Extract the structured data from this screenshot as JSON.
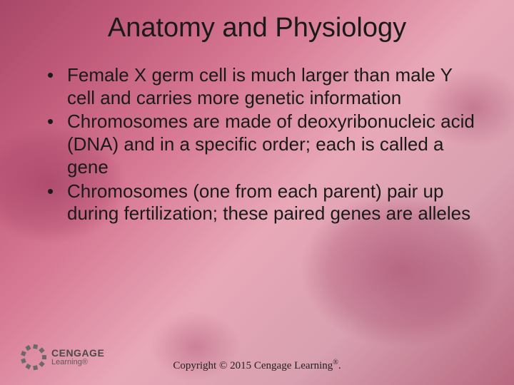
{
  "title": "Anatomy and Physiology",
  "bullets": [
    "Female X germ cell is much larger than male Y cell and carries more genetic information",
    "Chromosomes are made of deoxyribonucleic acid (DNA) and in a specific order; each is called a gene",
    "Chromosomes (one from each parent) pair up during fertilization; these paired genes are alleles"
  ],
  "logo": {
    "brand": "CENGAGE",
    "sub": "Learning®"
  },
  "copyright_prefix": "Copyright © 2015 Cengage Learning",
  "copyright_suffix": ".",
  "styling": {
    "slide_width": 720,
    "slide_height": 540,
    "title_fontsize": 38,
    "title_color": "#1a1a1a",
    "bullet_fontsize": 26,
    "bullet_color": "#1a1a1a",
    "copyright_fontsize": 15,
    "copyright_font": "Georgia serif",
    "background_gradient": [
      "#a84868",
      "#c05a7a",
      "#d87a95",
      "#e8a8b8",
      "#d8a0b0",
      "#b86880"
    ],
    "blob_color": "rgba(150,45,85,0.45)",
    "logo_brand_color": "#4a4a4a",
    "logo_burst_color": "#6a6a6a"
  }
}
